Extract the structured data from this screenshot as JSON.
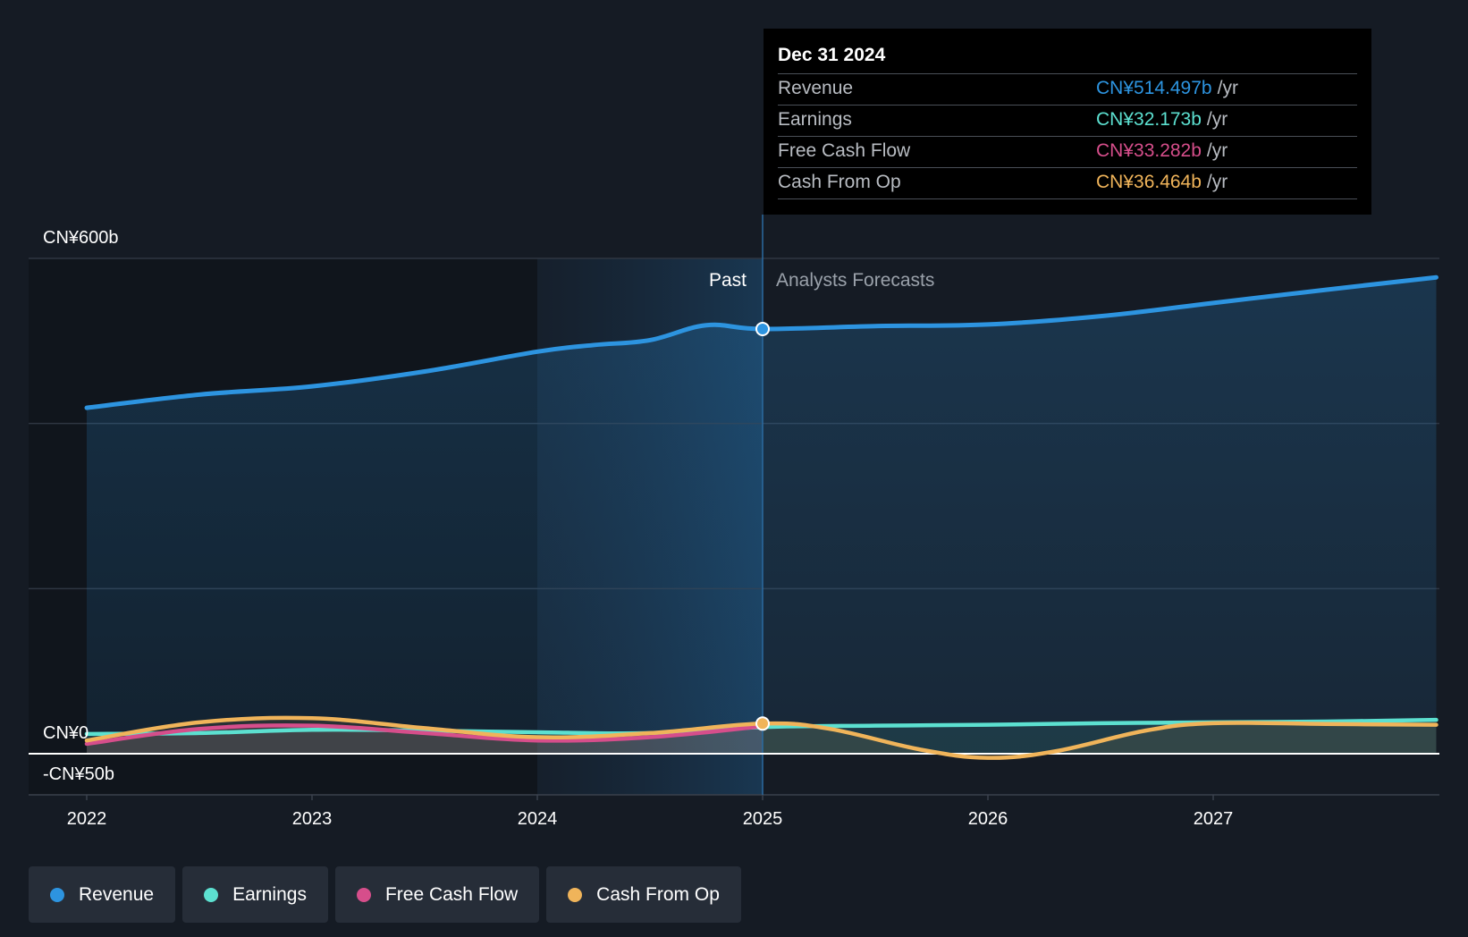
{
  "chart_data": {
    "type": "line",
    "y_axis": {
      "top_label": "CN¥600b",
      "zero_label": "CN¥0",
      "bottom_label": "-CN¥50b",
      "ylim": [
        -50,
        600
      ],
      "unit": "CN¥ billions"
    },
    "x_axis": {
      "ticks": [
        "2022",
        "2023",
        "2024",
        "2025",
        "2026",
        "2027"
      ],
      "xlim": [
        2021.75,
        2027.99
      ]
    },
    "divider_x": 2025.0,
    "past_label": "Past",
    "forecast_label": "Analysts Forecasts",
    "series": [
      {
        "name": "Revenue",
        "color": "#2d94e0",
        "points": [
          [
            2022.0,
            419
          ],
          [
            2022.5,
            435
          ],
          [
            2023.0,
            445
          ],
          [
            2023.5,
            463
          ],
          [
            2024.0,
            487
          ],
          [
            2024.25,
            495
          ],
          [
            2024.5,
            501
          ],
          [
            2024.75,
            519
          ],
          [
            2025.0,
            514.5
          ],
          [
            2025.5,
            518
          ],
          [
            2026.0,
            520
          ],
          [
            2026.5,
            530
          ],
          [
            2027.0,
            546
          ],
          [
            2027.5,
            562
          ],
          [
            2027.99,
            577
          ]
        ]
      },
      {
        "name": "Earnings",
        "color": "#5ce0d0",
        "points": [
          [
            2022.0,
            24
          ],
          [
            2022.5,
            25
          ],
          [
            2023.0,
            29
          ],
          [
            2023.5,
            28
          ],
          [
            2024.0,
            26
          ],
          [
            2024.5,
            25
          ],
          [
            2025.0,
            32.2
          ],
          [
            2025.5,
            34
          ],
          [
            2026.0,
            35
          ],
          [
            2026.5,
            37
          ],
          [
            2027.0,
            38
          ],
          [
            2027.5,
            39
          ],
          [
            2027.99,
            41
          ]
        ]
      },
      {
        "name": "Free Cash Flow",
        "color": "#d64e8b",
        "points": [
          [
            2022.0,
            12
          ],
          [
            2022.5,
            30
          ],
          [
            2023.0,
            34
          ],
          [
            2023.5,
            25
          ],
          [
            2024.0,
            16
          ],
          [
            2024.5,
            20
          ],
          [
            2025.0,
            33.3
          ]
        ]
      },
      {
        "name": "Cash From Op",
        "color": "#f0b45a",
        "points": [
          [
            2022.0,
            16
          ],
          [
            2022.5,
            38
          ],
          [
            2023.0,
            43
          ],
          [
            2023.5,
            31
          ],
          [
            2024.0,
            20
          ],
          [
            2024.5,
            25
          ],
          [
            2025.0,
            36.5
          ],
          [
            2025.3,
            30
          ],
          [
            2025.7,
            5
          ],
          [
            2026.0,
            -5
          ],
          [
            2026.3,
            3
          ],
          [
            2026.7,
            28
          ],
          [
            2027.0,
            37
          ],
          [
            2027.5,
            36
          ],
          [
            2027.99,
            35
          ]
        ]
      }
    ]
  },
  "tooltip": {
    "date": "Dec 31 2024",
    "rows": [
      {
        "name": "Revenue",
        "value": "CN¥514.497b",
        "unit": "/yr",
        "color": "#2d94e0"
      },
      {
        "name": "Earnings",
        "value": "CN¥32.173b",
        "unit": "/yr",
        "color": "#5ce0d0"
      },
      {
        "name": "Free Cash Flow",
        "value": "CN¥33.282b",
        "unit": "/yr",
        "color": "#d64e8b"
      },
      {
        "name": "Cash From Op",
        "value": "CN¥36.464b",
        "unit": "/yr",
        "color": "#f0b45a"
      }
    ]
  },
  "legend": [
    {
      "label": "Revenue",
      "color": "#2d94e0"
    },
    {
      "label": "Earnings",
      "color": "#5ce0d0"
    },
    {
      "label": "Free Cash Flow",
      "color": "#d64e8b"
    },
    {
      "label": "Cash From Op",
      "color": "#f0b45a"
    }
  ]
}
